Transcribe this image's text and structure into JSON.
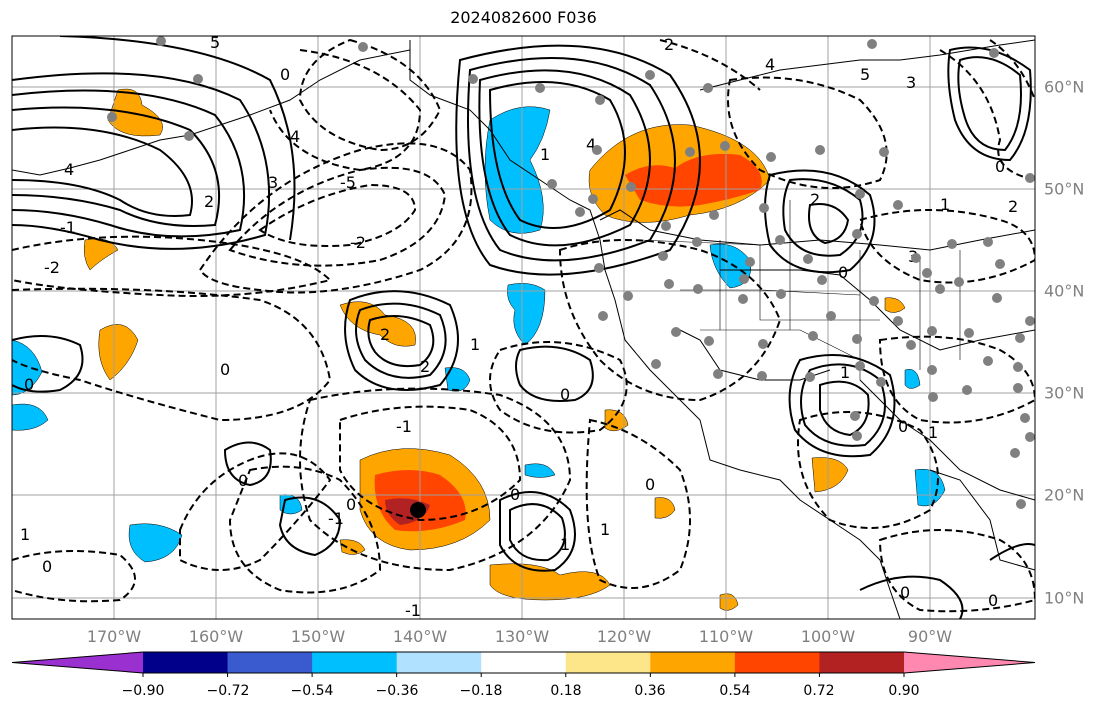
{
  "title": "2024082600 F036",
  "map": {
    "lon_labels": [
      "170°W",
      "160°W",
      "150°W",
      "140°W",
      "130°W",
      "120°W",
      "110°W",
      "100°W",
      "90°W"
    ],
    "lat_labels": [
      "60°N",
      "50°N",
      "40°N",
      "30°N",
      "20°N",
      "10°N"
    ],
    "contour_labels": [
      "-5",
      "-4",
      "-3",
      "-2",
      "-1",
      "0",
      "1",
      "2",
      "3",
      "4",
      "5"
    ],
    "marker": "storm-center-dot"
  },
  "colorbar": {
    "tick_labels": [
      "−0.90",
      "−0.72",
      "−0.54",
      "−0.36",
      "−0.18",
      "0.18",
      "0.36",
      "0.54",
      "0.72",
      "0.90"
    ],
    "colors": [
      "#9b30d0",
      "#00008b",
      "#3a5bd0",
      "#00bfff",
      "#b0e2ff",
      "#ffffff",
      "#fde68a",
      "#ffa500",
      "#ff4500",
      "#b22222",
      "#ff88b0"
    ]
  }
}
